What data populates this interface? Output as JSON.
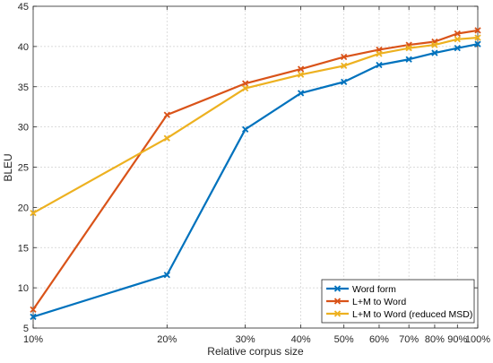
{
  "chart_data": {
    "type": "line",
    "xscale": "log",
    "x": [
      0.1,
      0.2,
      0.3,
      0.4,
      0.5,
      0.6,
      0.7,
      0.8,
      0.9,
      1.0
    ],
    "x_tick_labels": [
      "10%",
      "20%",
      "30%",
      "40%",
      "50%",
      "60%",
      "70%",
      "80%",
      "90%",
      "100%"
    ],
    "xlabel": "Relative corpus size",
    "ylabel": "BLEU",
    "ylim": [
      5,
      45
    ],
    "y_ticks": [
      5,
      10,
      15,
      20,
      25,
      30,
      35,
      40,
      45
    ],
    "grid": true,
    "legend_position": "bottom-right",
    "series": [
      {
        "name": "Word form",
        "color": "#0072BD",
        "values": [
          6.4,
          11.6,
          29.7,
          34.2,
          35.6,
          37.7,
          38.4,
          39.2,
          39.8,
          40.3
        ]
      },
      {
        "name": "L+M to Word",
        "color": "#D95319",
        "values": [
          7.3,
          31.5,
          35.4,
          37.2,
          38.7,
          39.6,
          40.2,
          40.6,
          41.6,
          42.0
        ]
      },
      {
        "name": "L+M to Word (reduced MSD)",
        "color": "#EDB120",
        "values": [
          19.3,
          28.6,
          34.8,
          36.5,
          37.6,
          39.1,
          39.8,
          40.2,
          40.9,
          41.1
        ]
      }
    ]
  }
}
